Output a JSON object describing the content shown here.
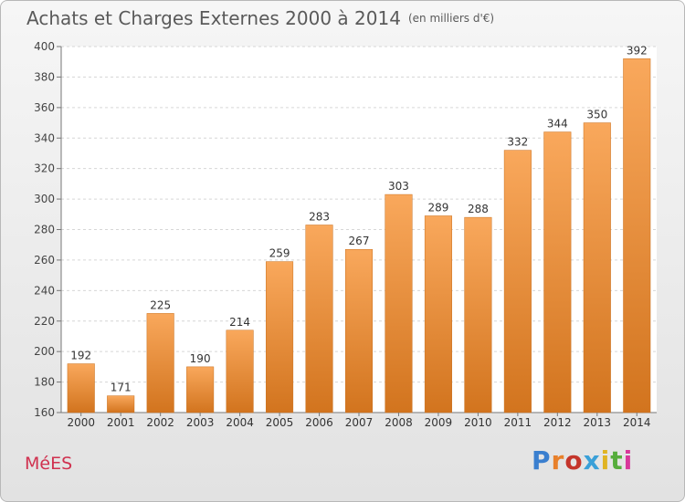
{
  "title": "Achats et Charges Externes 2000 à 2014",
  "subtitle": "(en milliers d'€)",
  "commune": "MéES",
  "brand": {
    "text": "Proxiti",
    "letter_colors": [
      "#3a7fcf",
      "#e8802a",
      "#c4352b",
      "#3aa0d8",
      "#e0b422",
      "#56ad3c",
      "#d8379a"
    ]
  },
  "colors": {
    "bar": "#ef9240",
    "bar_light": "#f9a85c",
    "bar_dark": "#d2741e",
    "commune": "#d0314f"
  },
  "chart_data": {
    "type": "bar",
    "title": "Achats et Charges Externes 2000 à 2014",
    "subtitle": "(en milliers d'€)",
    "categories": [
      "2000",
      "2001",
      "2002",
      "2003",
      "2004",
      "2005",
      "2006",
      "2007",
      "2008",
      "2009",
      "2010",
      "2011",
      "2012",
      "2013",
      "2014"
    ],
    "values": [
      192,
      171,
      225,
      190,
      214,
      259,
      283,
      267,
      303,
      289,
      288,
      332,
      344,
      350,
      392
    ],
    "ylim": [
      160,
      400
    ],
    "yticks": [
      160,
      180,
      200,
      220,
      240,
      260,
      280,
      300,
      320,
      340,
      360,
      380,
      400
    ],
    "grid": true,
    "data_labels": true
  }
}
